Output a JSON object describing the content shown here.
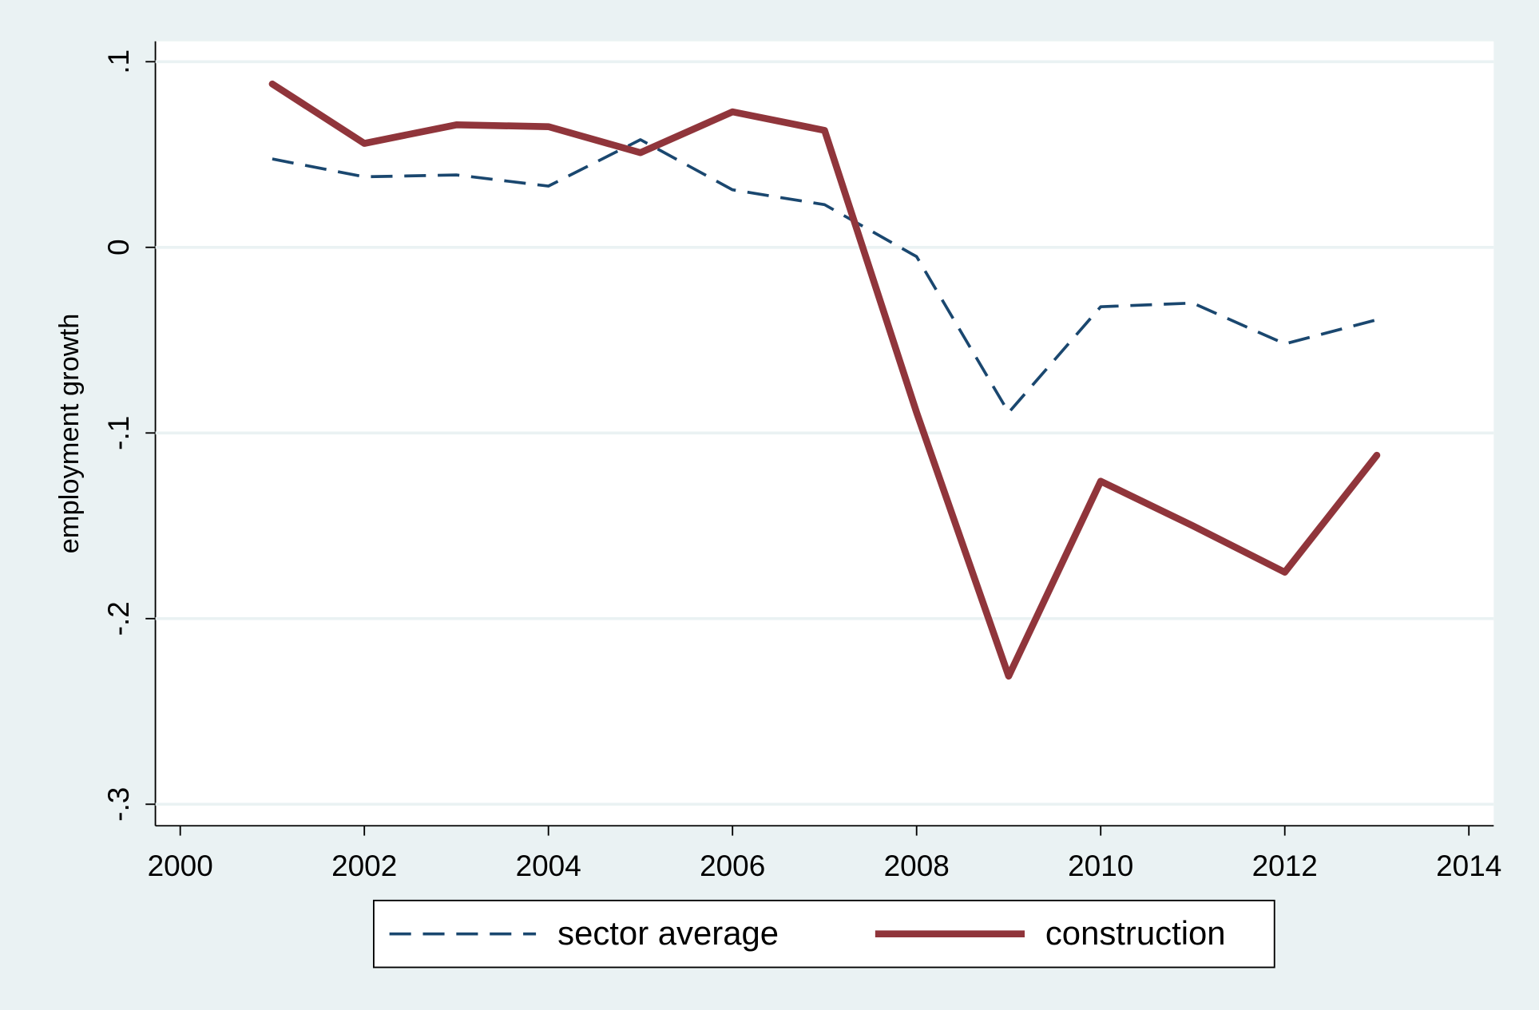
{
  "chart_data": {
    "type": "line",
    "y_label": "employment growth",
    "x": [
      2001,
      2002,
      2003,
      2004,
      2005,
      2006,
      2007,
      2008,
      2009,
      2010,
      2011,
      2012,
      2013
    ],
    "series": [
      {
        "name": "sector average",
        "color": "#1a476f",
        "dash": true,
        "values": [
          0.0476,
          0.038,
          0.039,
          0.033,
          0.058,
          0.031,
          0.023,
          -0.005,
          -0.089,
          -0.032,
          -0.03,
          -0.052,
          -0.039
        ]
      },
      {
        "name": "construction",
        "color": "#90353b",
        "dash": false,
        "values": [
          0.088,
          0.056,
          0.066,
          0.065,
          0.051,
          0.073,
          0.063,
          -0.089,
          -0.231,
          -0.126,
          -0.15,
          -0.175,
          -0.112
        ]
      }
    ],
    "xlim": [
      1999.73,
      2014.27
    ],
    "xticks": [
      2000,
      2002,
      2004,
      2006,
      2008,
      2010,
      2012,
      2014
    ],
    "ylim": [
      -0.3116,
      0.111
    ],
    "yticks": [
      {
        "value": -0.3,
        "label": "-.3"
      },
      {
        "value": -0.2,
        "label": "-.2"
      },
      {
        "value": -0.1,
        "label": "-.1"
      },
      0,
      {
        "value": 0.1,
        "label": ".1"
      }
    ],
    "grid": true
  }
}
